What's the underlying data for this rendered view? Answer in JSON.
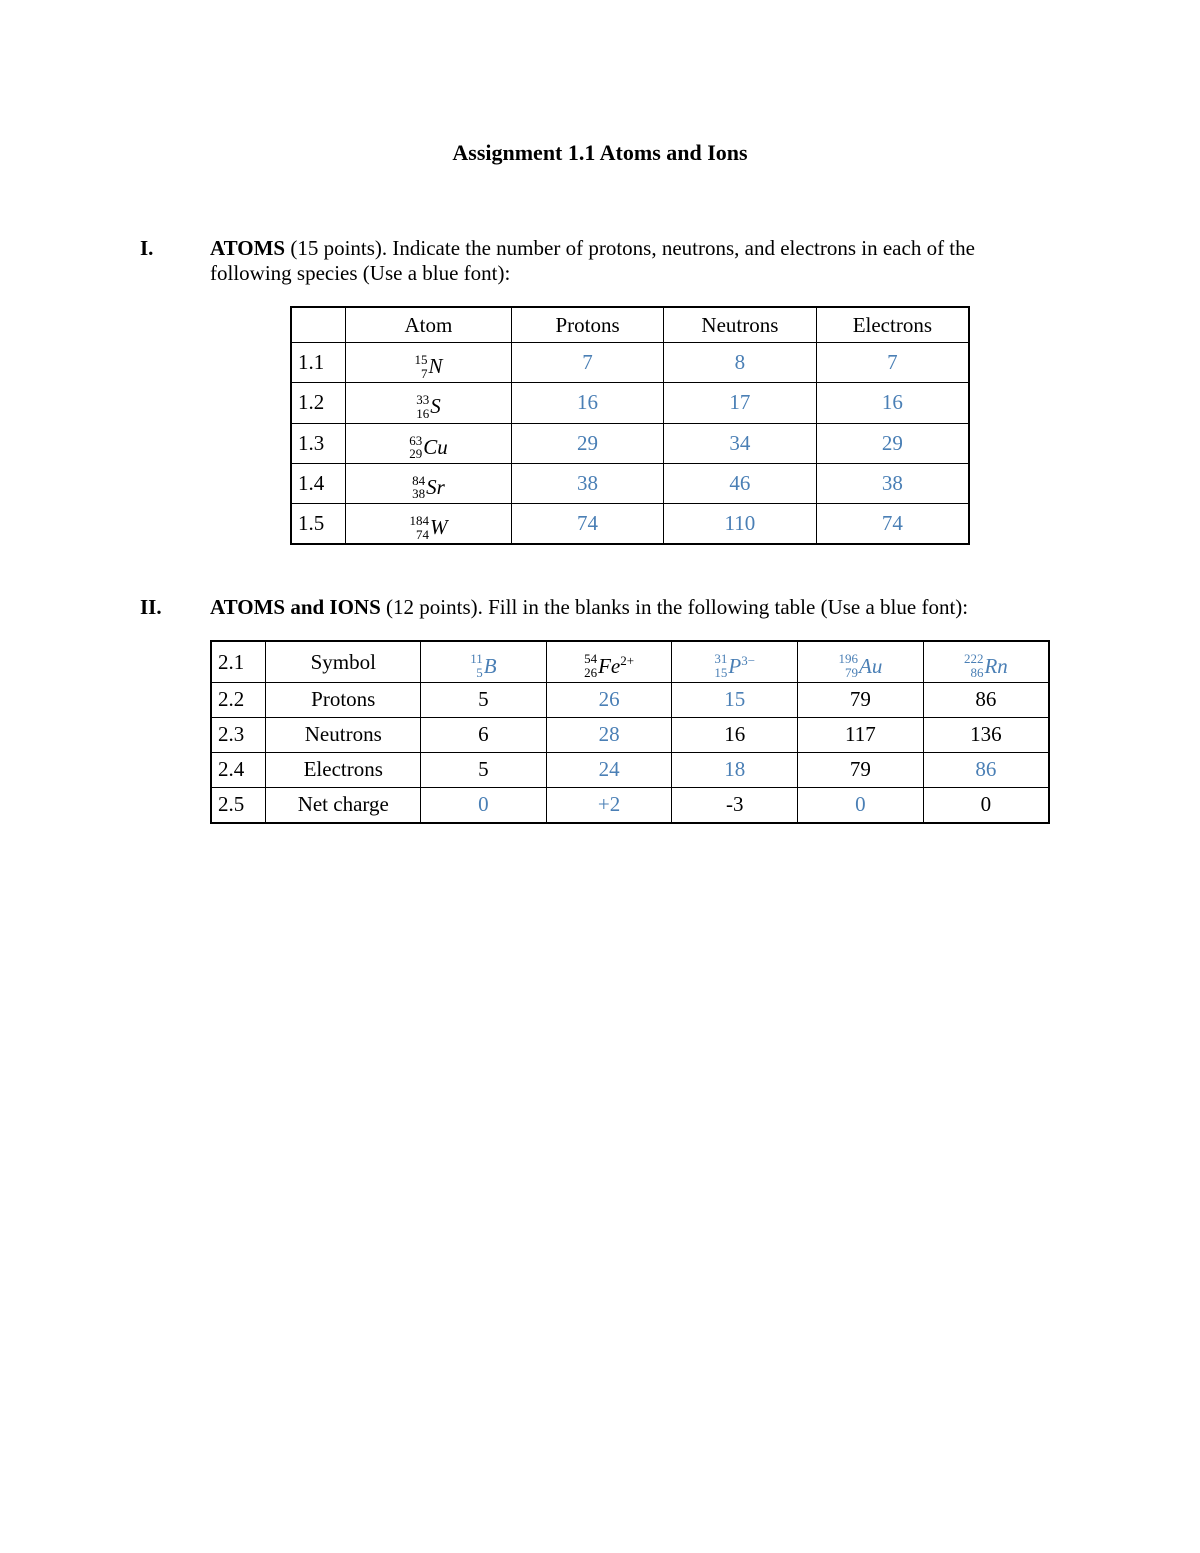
{
  "colors": {
    "answer_blue": "#4a7fb5",
    "text_black": "#000000"
  },
  "title": "Assignment 1.1 Atoms and Ions",
  "section1": {
    "num": "I.",
    "lead": "ATOMS",
    "rest": " (15 points). Indicate the number of protons, neutrons, and electrons in each of the following species (Use a blue font):",
    "headers": {
      "atom": "Atom",
      "protons": "Protons",
      "neutrons": "Neutrons",
      "electrons": "Electrons"
    },
    "rows": [
      {
        "idx": "1.1",
        "mass": "15",
        "z": "7",
        "sym": "N",
        "p": "7",
        "n": "8",
        "e": "7"
      },
      {
        "idx": "1.2",
        "mass": "33",
        "z": "16",
        "sym": "S",
        "p": "16",
        "n": "17",
        "e": "16"
      },
      {
        "idx": "1.3",
        "mass": "63",
        "z": "29",
        "sym": "Cu",
        "p": "29",
        "n": "34",
        "e": "29"
      },
      {
        "idx": "1.4",
        "mass": "84",
        "z": "38",
        "sym": "Sr",
        "p": "38",
        "n": "46",
        "e": "38"
      },
      {
        "idx": "1.5",
        "mass": "184",
        "z": "74",
        "sym": "W",
        "p": "74",
        "n": "110",
        "e": "74"
      }
    ]
  },
  "section2": {
    "num": "II.",
    "lead": "ATOMS and IONS",
    "rest": " (12 points). Fill in the blanks in the following table (Use a blue font):",
    "row_idx": [
      "2.1",
      "2.2",
      "2.3",
      "2.4",
      "2.5"
    ],
    "row_label": [
      "Symbol",
      "Protons",
      "Neutrons",
      "Electrons",
      "Net charge"
    ],
    "cols": [
      {
        "mass": "11",
        "z": "5",
        "sym": "B",
        "chg": "",
        "sym_blue": true,
        "protons": {
          "v": "5",
          "blue": false
        },
        "neutrons": {
          "v": "6",
          "blue": false
        },
        "electrons": {
          "v": "5",
          "blue": false
        },
        "net": {
          "v": "0",
          "blue": true
        }
      },
      {
        "mass": "54",
        "z": "26",
        "sym": "Fe",
        "chg": "2+",
        "sym_blue": false,
        "protons": {
          "v": "26",
          "blue": true
        },
        "neutrons": {
          "v": "28",
          "blue": true
        },
        "electrons": {
          "v": "24",
          "blue": true
        },
        "net": {
          "v": "+2",
          "blue": true
        }
      },
      {
        "mass": "31",
        "z": "15",
        "sym": "P",
        "chg": "3−",
        "sym_blue": true,
        "protons": {
          "v": "15",
          "blue": true
        },
        "neutrons": {
          "v": "16",
          "blue": false
        },
        "electrons": {
          "v": "18",
          "blue": true
        },
        "net": {
          "v": "-3",
          "blue": false
        }
      },
      {
        "mass": "196",
        "z": "79",
        "sym": "Au",
        "chg": "",
        "sym_blue": true,
        "protons": {
          "v": "79",
          "blue": false
        },
        "neutrons": {
          "v": "117",
          "blue": false
        },
        "electrons": {
          "v": "79",
          "blue": false
        },
        "net": {
          "v": "0",
          "blue": true
        }
      },
      {
        "mass": "222",
        "z": "86",
        "sym": "Rn",
        "chg": "",
        "sym_blue": true,
        "protons": {
          "v": "86",
          "blue": false
        },
        "neutrons": {
          "v": "136",
          "blue": false
        },
        "electrons": {
          "v": "86",
          "blue": true
        },
        "net": {
          "v": "0",
          "blue": false
        }
      }
    ]
  }
}
